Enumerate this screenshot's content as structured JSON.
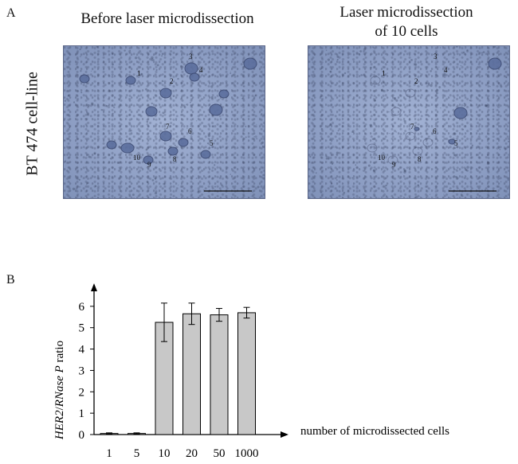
{
  "panel_a": {
    "label": "A",
    "left_title": "Before laser microdissection",
    "right_title_line1": "Laser microdissection",
    "right_title_line2": "of 10 cells",
    "side_label": "BT 474 cell-line",
    "cell_numbers": [
      "1",
      "2",
      "3",
      "4",
      "5",
      "6",
      "7",
      "8",
      "9",
      "10"
    ],
    "image_color": "#8ea0c6",
    "cell_color": "#5c6f9e"
  },
  "panel_b": {
    "label": "B",
    "y_label_italic_1": "HER2",
    "y_label_sep": "/",
    "y_label_italic_2": "RNase P",
    "y_label_rest": " ratio",
    "x_label": "number of microdissected cells"
  },
  "chart_data": {
    "type": "bar",
    "categories": [
      "1",
      "5",
      "10",
      "20",
      "50",
      "1000"
    ],
    "values": [
      0.05,
      0.05,
      5.25,
      5.65,
      5.6,
      5.7
    ],
    "error": [
      0.03,
      0.03,
      0.9,
      0.5,
      0.3,
      0.25
    ],
    "ylim": [
      0,
      7
    ],
    "yticks": [
      0,
      1,
      2,
      3,
      4,
      5,
      6
    ],
    "bar_color": "#c8c8c8",
    "xlabel": "number of microdissected cells",
    "ylabel": "HER2/RNase P ratio"
  }
}
